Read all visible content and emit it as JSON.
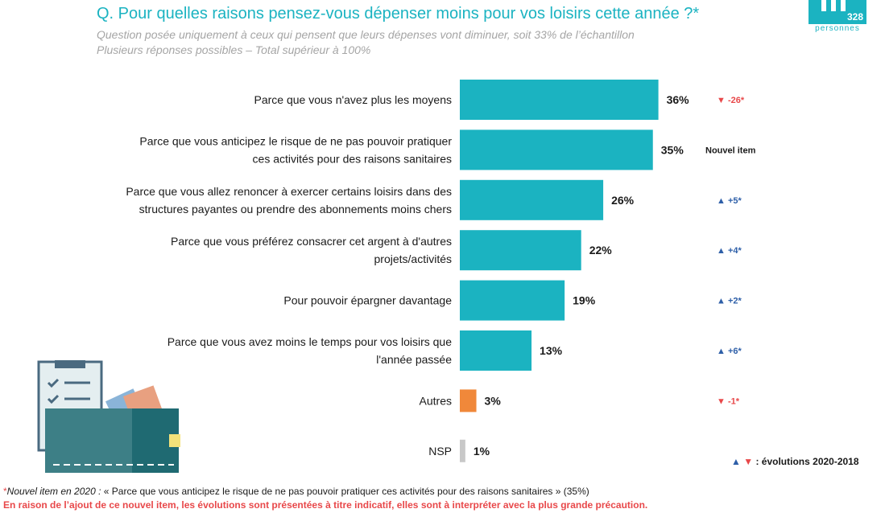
{
  "title": "Q. Pour quelles raisons pensez-vous dépenser moins pour vos loisirs cette année ?*",
  "subtitle_line1": "Question posée uniquement à ceux qui pensent que leurs dépenses vont diminuer, soit 33% de l’échantillon",
  "subtitle_line2": "Plusieurs réponses possibles – Total supérieur à 100%",
  "badge": {
    "count": "328",
    "label": "personnes"
  },
  "colors": {
    "teal": "#1bb3c1",
    "orange": "#f0883a",
    "grey": "#c8c8c8",
    "up": "#2e5fa8",
    "down": "#e8484a"
  },
  "chart_data": {
    "type": "bar",
    "orientation": "horizontal",
    "unit": "%",
    "categories": [
      [
        "Parce que vous n'avez plus les moyens"
      ],
      [
        "Parce que vous anticipez le risque de ne pas pouvoir pratiquer",
        "ces activités pour des raisons sanitaires"
      ],
      [
        "Parce que vous allez renoncer à exercer certains loisirs dans des",
        "structures payantes ou prendre des abonnements moins chers"
      ],
      [
        "Parce que vous préférez consacrer cet argent à d'autres",
        "projets/activités"
      ],
      [
        "Pour pouvoir épargner davantage"
      ],
      [
        "Parce que vous avez moins le temps pour vos loisirs que",
        "l'année passée"
      ],
      [
        "Autres"
      ],
      [
        "NSP"
      ]
    ],
    "values": [
      36,
      35,
      26,
      22,
      19,
      13,
      3,
      1
    ],
    "value_labels": [
      "36%",
      "35%",
      "26%",
      "22%",
      "19%",
      "13%",
      "3%",
      "1%"
    ],
    "bar_colors": [
      "teal",
      "teal",
      "teal",
      "teal",
      "teal",
      "teal",
      "orange",
      "grey"
    ],
    "evolutions": [
      {
        "dir": "down",
        "text": "-26*"
      },
      {
        "dir": "none",
        "text": "Nouvel item"
      },
      {
        "dir": "up",
        "text": "+5*"
      },
      {
        "dir": "up",
        "text": "+4*"
      },
      {
        "dir": "up",
        "text": "+2*"
      },
      {
        "dir": "up",
        "text": "+6*"
      },
      {
        "dir": "down",
        "text": "-1*"
      },
      {
        "dir": "none",
        "text": ""
      }
    ]
  },
  "legend_text": " : évolutions 2020-2018",
  "footnote": {
    "star": "*",
    "italic": "Nouvel item en 2020 :",
    "rest": " « Parce que vous anticipez le risque de ne pas pouvoir pratiquer ces activités pour des raisons sanitaires » (35%)",
    "warning": "En raison de l’ajout de ce nouvel item, les évolutions sont présentées à titre indicatif, elles sont à interpréter avec la plus grande précaution."
  }
}
